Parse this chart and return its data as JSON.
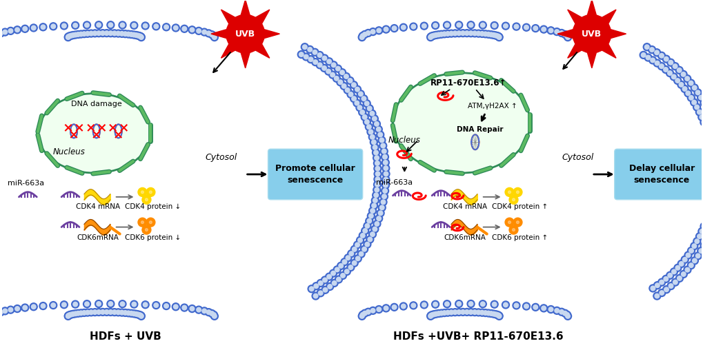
{
  "left_label": "HDFs + UVB",
  "right_label": "HDFs +UVB+ RP11-670E13.6",
  "left_outcome": "Promote cellular\nsenescence",
  "right_outcome": "Delay cellular\nsenescence",
  "cytosol": "Cytosol",
  "nucleus_label": "Nucleus",
  "dna_damage_label": "DNA damage",
  "mir_label": "miR-663a",
  "cdk4_mrna": "CDK4 mRNA",
  "cdk4_protein": "CDK4 protein",
  "cdk6_mrna": "CDK6mRNA",
  "cdk6_protein": "CDK6 protein",
  "rp11_label": "RP11-670E13.6↑",
  "atm_label": "ATM,γH2AX ↑",
  "dna_repair_label": "DNA Repair",
  "uvb": "UVB",
  "outcome_box_color": "#87CEEB",
  "mem_dark": "#4169CD",
  "mem_light": "#C8D8F0",
  "nucleus_green": "#2E8B57",
  "nucleus_fill": "#F0FFF0",
  "bg_color": "#FFFFFF",
  "purple": "#6B3FA0",
  "yellow": "#FFD700",
  "orange": "#FF8C00",
  "red": "#DD0000"
}
